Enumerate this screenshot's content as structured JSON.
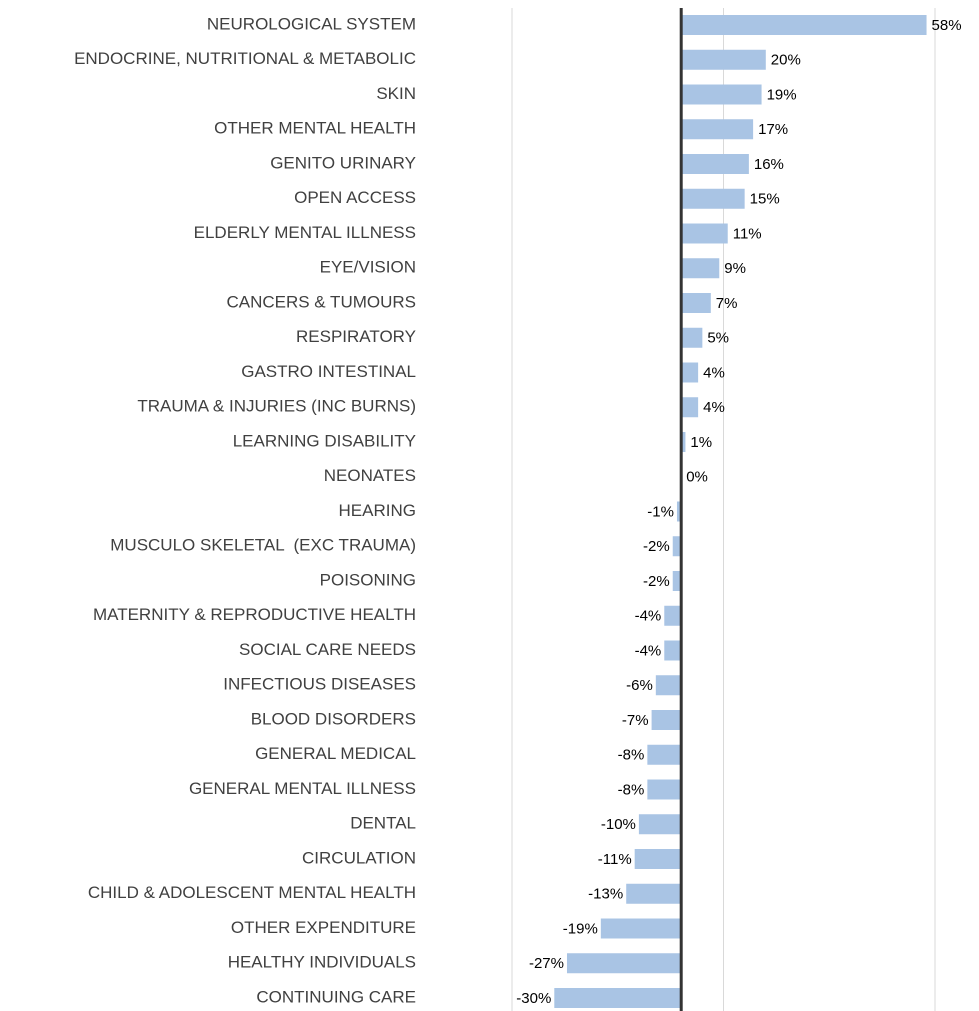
{
  "chart_data": {
    "type": "barh",
    "categories": [
      "NEUROLOGICAL SYSTEM",
      "ENDOCRINE, NUTRITIONAL & METABOLIC",
      "SKIN",
      "OTHER MENTAL HEALTH",
      "GENITO URINARY",
      "OPEN ACCESS",
      "ELDERLY MENTAL ILLNESS",
      "EYE/VISION",
      "CANCERS & TUMOURS",
      "RESPIRATORY",
      "GASTRO INTESTINAL",
      "TRAUMA & INJURIES (INC BURNS)",
      "LEARNING DISABILITY",
      "NEONATES",
      "HEARING",
      "MUSCULO SKELETAL  (EXC TRAUMA)",
      "POISONING",
      "MATERNITY & REPRODUCTIVE HEALTH",
      "SOCIAL CARE NEEDS",
      "INFECTIOUS DISEASES",
      "BLOOD DISORDERS",
      "GENERAL MEDICAL",
      "GENERAL MENTAL ILLNESS",
      "DENTAL",
      "CIRCULATION",
      "CHILD & ADOLESCENT MENTAL HEALTH",
      "OTHER EXPENDITURE",
      "HEALTHY INDIVIDUALS",
      "CONTINUING CARE"
    ],
    "values": [
      58,
      20,
      19,
      17,
      16,
      15,
      11,
      9,
      7,
      5,
      4,
      4,
      1,
      0,
      -1,
      -2,
      -2,
      -4,
      -4,
      -6,
      -7,
      -8,
      -8,
      -10,
      -11,
      -13,
      -19,
      -27,
      -30
    ],
    "value_labels": [
      "58%",
      "20%",
      "19%",
      "17%",
      "16%",
      "15%",
      "11%",
      "9%",
      "7%",
      "5%",
      "4%",
      "4%",
      "1%",
      "0%",
      "-1%",
      "-2%",
      "-2%",
      "-4%",
      "-4%",
      "-6%",
      "-7%",
      "-8%",
      "-8%",
      "-10%",
      "-11%",
      "-13%",
      "-19%",
      "-27%",
      "-30%"
    ],
    "color": "#a9c4e4",
    "xlim": [
      -40,
      60
    ],
    "xticks": [
      -40,
      10,
      60
    ],
    "grid": true
  }
}
